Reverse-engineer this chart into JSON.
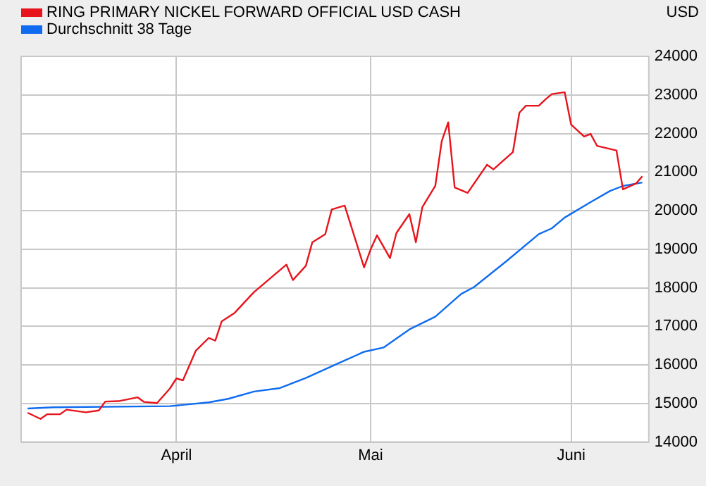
{
  "chart_data": {
    "type": "line",
    "ylabel": "USD",
    "legend": "top left",
    "grid": true,
    "marker": "none",
    "line_style": "solid",
    "xlim": [
      "--03-08",
      "--06-13"
    ],
    "xticks": [
      {
        "value": "--04-01",
        "label": "April"
      },
      {
        "value": "--05-01",
        "label": "Mai"
      },
      {
        "value": "--06-01",
        "label": "Juni"
      }
    ],
    "ylim": [
      14000,
      24000
    ],
    "yticks": [
      14000,
      15000,
      16000,
      17000,
      18000,
      19000,
      20000,
      21000,
      22000,
      23000,
      24000
    ],
    "series": [
      {
        "name": "RING PRIMARY NICKEL FORWARD OFFICIAL USD CASH",
        "color": "#e8141c",
        "x": [
          "--03-09",
          "--03-11",
          "--03-12",
          "--03-14",
          "--03-15",
          "--03-18",
          "--03-20",
          "--03-21",
          "--03-23",
          "--03-26",
          "--03-27",
          "--03-29",
          "--03-31",
          "--04-01",
          "--04-02",
          "--04-04",
          "--04-06",
          "--04-07",
          "--04-08",
          "--04-10",
          "--04-12",
          "--04-13",
          "--04-18",
          "--04-19",
          "--04-21",
          "--04-22",
          "--04-24",
          "--04-25",
          "--04-27",
          "--04-30",
          "--05-01",
          "--05-02",
          "--05-04",
          "--05-05",
          "--05-07",
          "--05-08",
          "--05-09",
          "--05-11",
          "--05-12",
          "--05-13",
          "--05-14",
          "--05-16",
          "--05-19",
          "--05-20",
          "--05-23",
          "--05-24",
          "--05-25",
          "--05-27",
          "--05-28",
          "--05-29",
          "--05-31",
          "--06-01",
          "--06-03",
          "--06-04",
          "--06-05",
          "--06-08",
          "--06-09",
          "--06-11",
          "--06-12"
        ],
        "values": [
          14760,
          14600,
          14720,
          14720,
          14840,
          14770,
          14820,
          15050,
          15060,
          15160,
          15040,
          15010,
          15390,
          15650,
          15600,
          16370,
          16700,
          16630,
          17130,
          17350,
          17710,
          17890,
          18600,
          18200,
          18570,
          19180,
          19390,
          20030,
          20130,
          18530,
          18990,
          19360,
          18770,
          19420,
          19910,
          19180,
          20090,
          20640,
          21800,
          22290,
          20600,
          20460,
          21190,
          21070,
          21520,
          22540,
          22720,
          22720,
          22880,
          23020,
          23070,
          22230,
          21920,
          21990,
          21680,
          21560,
          20550,
          20700,
          20890
        ]
      },
      {
        "name": "Durchschnitt 38 Tage",
        "color": "#0f6cf0",
        "x": [
          "--03-09",
          "--03-13",
          "--03-31",
          "--04-06",
          "--04-09",
          "--04-13",
          "--04-17",
          "--04-21",
          "--04-26",
          "--04-30",
          "--05-03",
          "--05-07",
          "--05-11",
          "--05-15",
          "--05-17",
          "--05-22",
          "--05-27",
          "--05-29",
          "--05-31",
          "--06-04",
          "--06-07",
          "--06-09",
          "--06-12"
        ],
        "values": [
          14870,
          14900,
          14930,
          15030,
          15120,
          15310,
          15400,
          15660,
          16040,
          16340,
          16450,
          16920,
          17250,
          17840,
          18020,
          18690,
          19390,
          19540,
          19820,
          20220,
          20510,
          20640,
          20730
        ]
      }
    ]
  }
}
